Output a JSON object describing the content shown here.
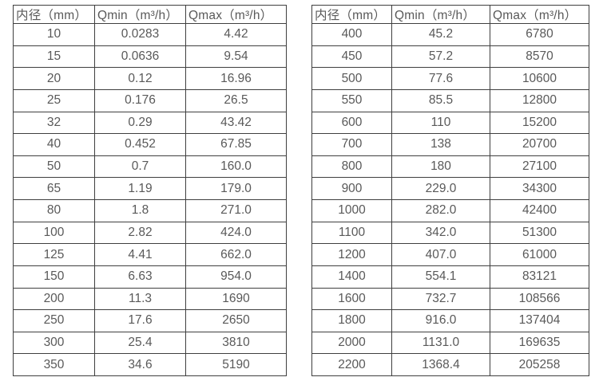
{
  "page": {
    "background_color": "#ffffff",
    "text_color": "#595959",
    "border_color": "#3f3f3f"
  },
  "chart_data": [
    {
      "type": "table",
      "name": "flow-table-small-diameters",
      "columns": [
        "内径（mm）",
        "Qmin（m³/h）",
        "Qmax（m³/h）"
      ],
      "rows": [
        [
          "10",
          "0.0283",
          "4.42"
        ],
        [
          "15",
          "0.0636",
          "9.54"
        ],
        [
          "20",
          "0.12",
          "16.96"
        ],
        [
          "25",
          "0.176",
          "26.5"
        ],
        [
          "32",
          "0.29",
          "43.42"
        ],
        [
          "40",
          "0.452",
          "67.85"
        ],
        [
          "50",
          "0.7",
          "160.0"
        ],
        [
          "65",
          "1.19",
          "179.0"
        ],
        [
          "80",
          "1.8",
          "271.0"
        ],
        [
          "100",
          "2.82",
          "424.0"
        ],
        [
          "125",
          "4.41",
          "662.0"
        ],
        [
          "150",
          "6.63",
          "954.0"
        ],
        [
          "200",
          "11.3",
          "1690"
        ],
        [
          "250",
          "17.6",
          "2650"
        ],
        [
          "300",
          "25.4",
          "3810"
        ],
        [
          "350",
          "34.6",
          "5190"
        ]
      ]
    },
    {
      "type": "table",
      "name": "flow-table-large-diameters",
      "columns": [
        "内径（mm）",
        "Qmin（m³/h）",
        "Qmax（m³/h）"
      ],
      "rows": [
        [
          "400",
          "45.2",
          "6780"
        ],
        [
          "450",
          "57.2",
          "8570"
        ],
        [
          "500",
          "77.6",
          "10600"
        ],
        [
          "550",
          "85.5",
          "12800"
        ],
        [
          "600",
          "110",
          "15200"
        ],
        [
          "700",
          "138",
          "20700"
        ],
        [
          "800",
          "180",
          "27100"
        ],
        [
          "900",
          "229.0",
          "34300"
        ],
        [
          "1000",
          "282.0",
          "42400"
        ],
        [
          "1100",
          "342.0",
          "51300"
        ],
        [
          "1200",
          "407.0",
          "61000"
        ],
        [
          "1400",
          "554.1",
          "83121"
        ],
        [
          "1600",
          "732.7",
          "108566"
        ],
        [
          "1800",
          "916.0",
          "137404"
        ],
        [
          "2000",
          "1131.0",
          "169635"
        ],
        [
          "2200",
          "1368.4",
          "205258"
        ]
      ]
    }
  ]
}
